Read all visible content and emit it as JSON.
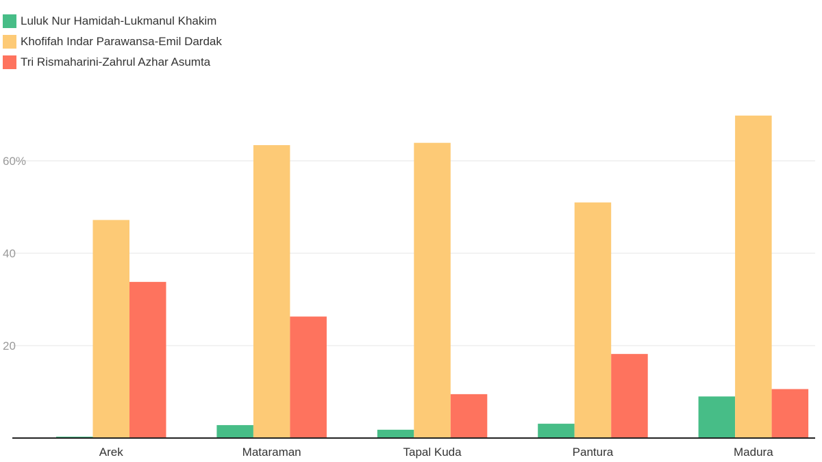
{
  "colors": {
    "green": "#47bd87",
    "yellow": "#fdca76",
    "red": "#fe735e",
    "grid": "#e6e6e6",
    "axis": "#222222"
  },
  "chart_data": {
    "type": "bar",
    "categories": [
      "Arek",
      "Mataraman",
      "Tapal Kuda",
      "Pantura",
      "Madura"
    ],
    "series": [
      {
        "name": "Luluk Nur Hamidah-Lukmanul Khakim",
        "color": "#47bd87",
        "values": [
          0.3,
          2.8,
          1.8,
          3.1,
          9.0
        ]
      },
      {
        "name": "Khofifah Indar Parawansa-Emil Dardak",
        "color": "#fdca76",
        "values": [
          47.2,
          63.4,
          63.9,
          51.0,
          69.8
        ]
      },
      {
        "name": "Tri Rismaharini-Zahrul Azhar Asumta",
        "color": "#fe735e",
        "values": [
          33.8,
          26.3,
          9.5,
          18.2,
          10.6
        ]
      }
    ],
    "yticks": [
      {
        "value": 20,
        "label": "20"
      },
      {
        "value": 40,
        "label": "40"
      },
      {
        "value": 60,
        "label": "60%"
      }
    ],
    "ylim": [
      0,
      72
    ],
    "grid": true,
    "legend": "top-left"
  }
}
